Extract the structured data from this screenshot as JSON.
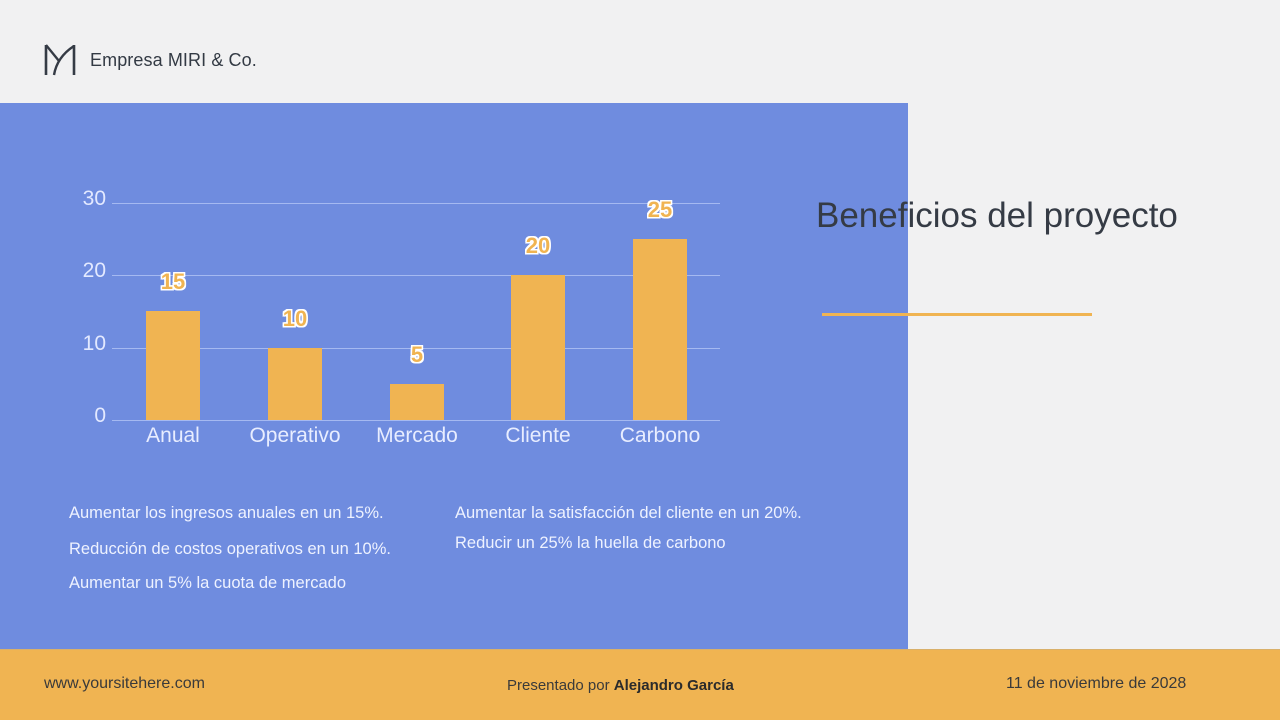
{
  "brand": {
    "name": "Empresa MIRI & Co.",
    "logo_icon": "m-monogram-icon"
  },
  "title": "Beneficios del proyecto",
  "colors": {
    "panel": "#6f8cdf",
    "accent": "#f0b452",
    "background": "#f1f1f2",
    "text_dark": "#353b45"
  },
  "chart_data": {
    "type": "bar",
    "title": "",
    "categories": [
      "Anual",
      "Operativo",
      "Mercado",
      "Cliente",
      "Carbono"
    ],
    "values": [
      15,
      10,
      5,
      20,
      25
    ],
    "data_labels": [
      "15",
      "10",
      "5",
      "20",
      "25"
    ],
    "xlabel": "",
    "ylabel": "",
    "ylim": [
      0,
      30
    ],
    "yticks": [
      "0",
      "10",
      "20",
      "30"
    ],
    "grid": true,
    "legend": "none",
    "bar_color": "#f0b452"
  },
  "bullets": {
    "left": [
      "Aumentar los ingresos anuales en un 15%.",
      "Reducción de costos operativos en un 10%.",
      "Aumentar un 5% la cuota de mercado"
    ],
    "right": [
      "Aumentar la satisfacción del cliente en un 20%.",
      "Reducir un 25% la huella de carbono"
    ]
  },
  "footer": {
    "site": "www.yoursitehere.com",
    "presenter_prefix": "Presentado por",
    "presenter_name": "Alejandro García",
    "date": "11 de noviembre de 2028"
  }
}
